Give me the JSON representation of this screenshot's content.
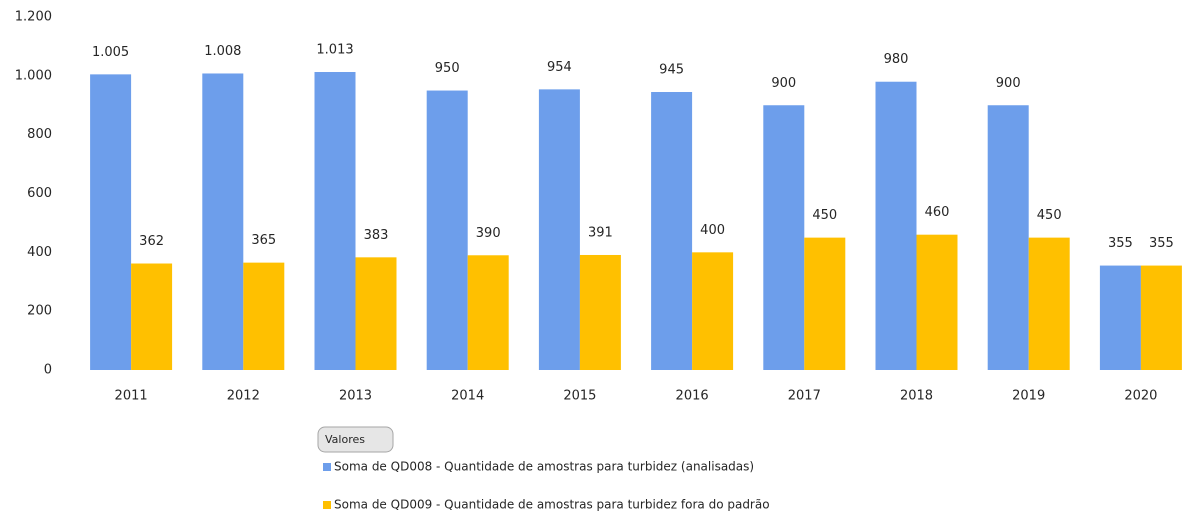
{
  "chart_data": {
    "type": "bar",
    "categories": [
      "2011",
      "2012",
      "2013",
      "2014",
      "2015",
      "2016",
      "2017",
      "2018",
      "2019",
      "2020"
    ],
    "series": [
      {
        "name": "Soma de QD008 - Quantidade de amostras para turbidez (analisadas)",
        "color": "#6d9eeb",
        "values": [
          1005,
          1008,
          1013,
          950,
          954,
          945,
          900,
          980,
          900,
          355
        ],
        "value_labels": [
          "1.005",
          "1.008",
          "1.013",
          "950",
          "954",
          "945",
          "900",
          "980",
          "900",
          "355"
        ]
      },
      {
        "name": "Soma de QD009 - Quantidade de amostras para turbidez fora do padrão",
        "color": "#ffc000",
        "values": [
          362,
          365,
          383,
          390,
          391,
          400,
          450,
          460,
          450,
          355
        ]
      }
    ],
    "ylim": [
      0,
      1200
    ],
    "yticks": [
      0,
      200,
      400,
      600,
      800,
      {
        "value": 1000,
        "label": "1.000"
      },
      {
        "value": 1200,
        "label": "1.200"
      }
    ],
    "grid": false,
    "field_button": "Valores"
  }
}
